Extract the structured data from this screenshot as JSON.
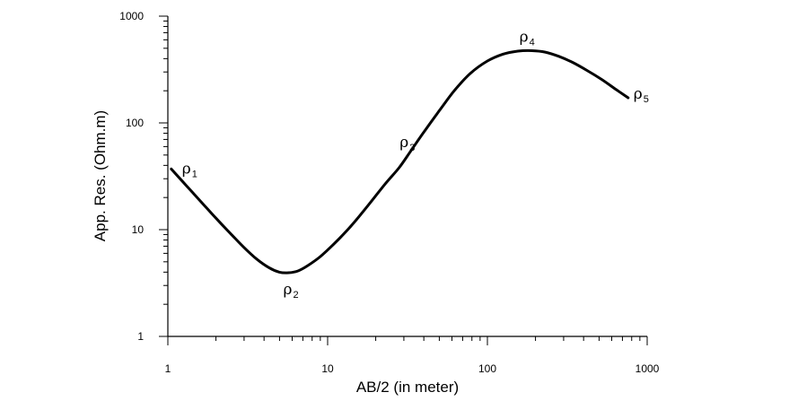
{
  "chart_data": {
    "type": "line",
    "title": "",
    "xlabel": "AB/2 (in meter)",
    "ylabel": "App. Res. (Ohm.m)",
    "xscale": "log",
    "yscale": "log",
    "xlim": [
      1,
      1000
    ],
    "ylim": [
      1,
      1000
    ],
    "x_ticks": [
      1,
      10,
      100,
      1000
    ],
    "y_ticks": [
      1,
      10,
      100,
      1000
    ],
    "x_tick_labels": [
      "1",
      "10",
      "100",
      "1000"
    ],
    "y_tick_labels": [
      "1",
      "10",
      "100",
      "1000"
    ],
    "grid": false,
    "legend": "none",
    "series": [
      {
        "x": [
          1.05,
          1.3,
          1.6,
          2.0,
          2.5,
          3.0,
          3.6,
          4.3,
          5.0,
          5.7,
          6.5,
          7.5,
          9.0,
          11,
          14,
          18,
          23,
          28,
          33,
          40,
          50,
          62,
          78,
          100,
          125,
          155,
          190,
          230,
          280,
          340,
          420,
          520,
          640,
          760
        ],
        "y": [
          37,
          26,
          18.5,
          12.8,
          9.0,
          6.8,
          5.3,
          4.4,
          4.0,
          3.95,
          4.1,
          4.6,
          5.6,
          7.4,
          10.8,
          17.0,
          27,
          38,
          54,
          82,
          130,
          200,
          290,
          380,
          440,
          470,
          475,
          460,
          420,
          370,
          310,
          255,
          205,
          172
        ]
      }
    ],
    "annotations": [
      {
        "base": "ρ",
        "sub": "1",
        "x": 1.05,
        "y": 37
      },
      {
        "base": "ρ",
        "sub": "2",
        "x": 5.7,
        "y": 3.95
      },
      {
        "base": "ρ",
        "sub": "3",
        "x": 33,
        "y": 54
      },
      {
        "base": "ρ",
        "sub": "4",
        "x": 190,
        "y": 475
      },
      {
        "base": "ρ",
        "sub": "5",
        "x": 760,
        "y": 172
      }
    ]
  }
}
